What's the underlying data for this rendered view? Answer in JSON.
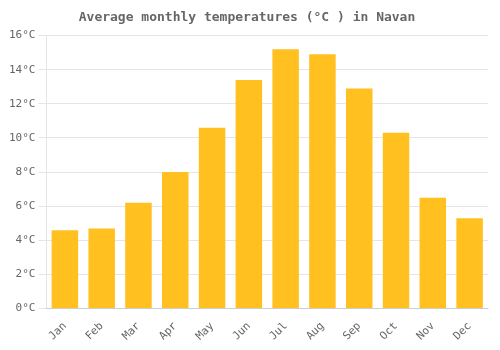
{
  "chart_data": {
    "type": "bar",
    "title": "Average monthly temperatures (°C ) in Navan",
    "categories": [
      "Jan",
      "Feb",
      "Mar",
      "Apr",
      "May",
      "Jun",
      "Jul",
      "Aug",
      "Sep",
      "Oct",
      "Nov",
      "Dec"
    ],
    "values": [
      4.6,
      4.7,
      6.2,
      8.0,
      10.6,
      13.4,
      15.2,
      14.9,
      12.9,
      10.3,
      6.5,
      5.3
    ],
    "color": "#FFC020",
    "ylim": [
      0,
      16
    ],
    "yticks": [
      {
        "value": 0,
        "label": "0°C"
      },
      {
        "value": 2,
        "label": "2°C"
      },
      {
        "value": 4,
        "label": "4°C"
      },
      {
        "value": 6,
        "label": "6°C"
      },
      {
        "value": 8,
        "label": "8°C"
      },
      {
        "value": 10,
        "label": "10°C"
      },
      {
        "value": 12,
        "label": "12°C"
      },
      {
        "value": 14,
        "label": "14°C"
      },
      {
        "value": 16,
        "label": "16°C"
      }
    ],
    "grid": "y"
  }
}
